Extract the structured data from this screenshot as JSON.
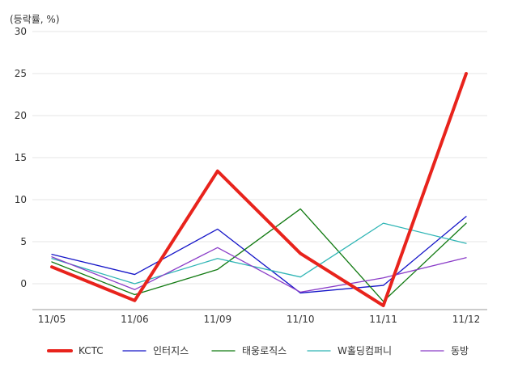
{
  "chart_data": {
    "type": "line",
    "unit_label": "(등락률, %)",
    "categories": [
      "11/05",
      "11/06",
      "11/09",
      "11/10",
      "11/11",
      "11/12"
    ],
    "ylim": [
      -3,
      30
    ],
    "yticks": [
      0,
      5,
      10,
      15,
      20,
      25,
      30
    ],
    "grid": true,
    "legend_position": "bottom",
    "series": [
      {
        "name": "KCTC",
        "color": "#e8231c",
        "bold": true,
        "values": [
          2.0,
          -2.0,
          13.4,
          3.6,
          -2.6,
          25.0
        ]
      },
      {
        "name": "인터지스",
        "color": "#1515c8",
        "bold": false,
        "values": [
          3.5,
          1.1,
          6.5,
          -1.1,
          -0.2,
          8.0
        ]
      },
      {
        "name": "태웅로직스",
        "color": "#117a11",
        "bold": false,
        "values": [
          2.6,
          -1.3,
          1.7,
          8.9,
          -2.1,
          7.2
        ]
      },
      {
        "name": "W홀딩컴퍼니",
        "color": "#2fb5b5",
        "bold": false,
        "values": [
          3.0,
          0.0,
          3.0,
          0.8,
          7.2,
          4.8
        ]
      },
      {
        "name": "동방",
        "color": "#8a3cc8",
        "bold": false,
        "values": [
          3.2,
          -0.7,
          4.3,
          -1.0,
          0.7,
          3.1
        ]
      }
    ]
  }
}
